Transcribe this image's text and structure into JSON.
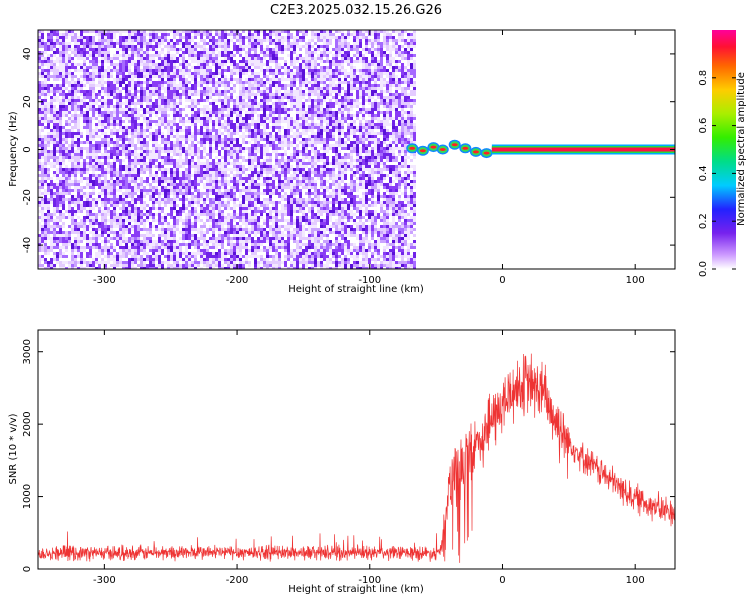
{
  "title": "C2E3.2025.032.15.26.G26",
  "chart_data": [
    {
      "type": "heatmap",
      "xlabel": "Height of straight line (km)",
      "ylabel": "Frequency (Hz)",
      "xlim": [
        -350,
        130
      ],
      "ylim": [
        -50,
        50
      ],
      "xticks": [
        -300,
        -200,
        -100,
        0,
        100
      ],
      "yticks": [
        -40,
        -20,
        0,
        20,
        40
      ],
      "noise_region_x": [
        -350,
        -67
      ],
      "noise_peak_intensity": 0.2,
      "signal_track": [
        {
          "x": -68,
          "y": 0.5,
          "v": 0.9
        },
        {
          "x": -60,
          "y": -0.5,
          "v": 0.95
        },
        {
          "x": -52,
          "y": 1.0,
          "v": 0.8
        },
        {
          "x": -45,
          "y": 0.0,
          "v": 0.9
        },
        {
          "x": -36,
          "y": 2.0,
          "v": 0.85
        },
        {
          "x": -28,
          "y": 0.5,
          "v": 0.95
        },
        {
          "x": -20,
          "y": -1.0,
          "v": 0.9
        },
        {
          "x": -12,
          "y": -1.5,
          "v": 0.85
        }
      ],
      "steady_line": {
        "x_start": -8,
        "x_end": 130,
        "y": 0,
        "v": 1.0
      },
      "colorbar": {
        "label": "Normalized spectral amplitude",
        "ticks": [
          0.0,
          0.2,
          0.4,
          0.6,
          0.8
        ],
        "range": [
          0,
          1
        ]
      }
    },
    {
      "type": "line",
      "xlabel": "Height of straight line (km)",
      "ylabel": "SNR (10 * v/v)",
      "xlim": [
        -350,
        130
      ],
      "ylim": [
        0,
        3300
      ],
      "xticks": [
        -300,
        -200,
        -100,
        0,
        100
      ],
      "yticks": [
        0,
        1000,
        2000,
        3000
      ],
      "color": "#ee3333",
      "envelope": [
        {
          "x": -350,
          "y": 220
        },
        {
          "x": -300,
          "y": 220
        },
        {
          "x": -200,
          "y": 230
        },
        {
          "x": -100,
          "y": 220
        },
        {
          "x": -50,
          "y": 220
        },
        {
          "x": -45,
          "y": 300
        },
        {
          "x": -42,
          "y": 1000
        },
        {
          "x": -35,
          "y": 1300
        },
        {
          "x": -20,
          "y": 1700
        },
        {
          "x": -10,
          "y": 2000
        },
        {
          "x": 0,
          "y": 2250
        },
        {
          "x": 10,
          "y": 2500
        },
        {
          "x": 20,
          "y": 2550
        },
        {
          "x": 30,
          "y": 2450
        },
        {
          "x": 40,
          "y": 2050
        },
        {
          "x": 50,
          "y": 1750
        },
        {
          "x": 60,
          "y": 1550
        },
        {
          "x": 70,
          "y": 1400
        },
        {
          "x": 80,
          "y": 1250
        },
        {
          "x": 90,
          "y": 1100
        },
        {
          "x": 100,
          "y": 980
        },
        {
          "x": 110,
          "y": 900
        },
        {
          "x": 120,
          "y": 820
        },
        {
          "x": 130,
          "y": 780
        }
      ],
      "noise_amplitude": 180
    }
  ]
}
